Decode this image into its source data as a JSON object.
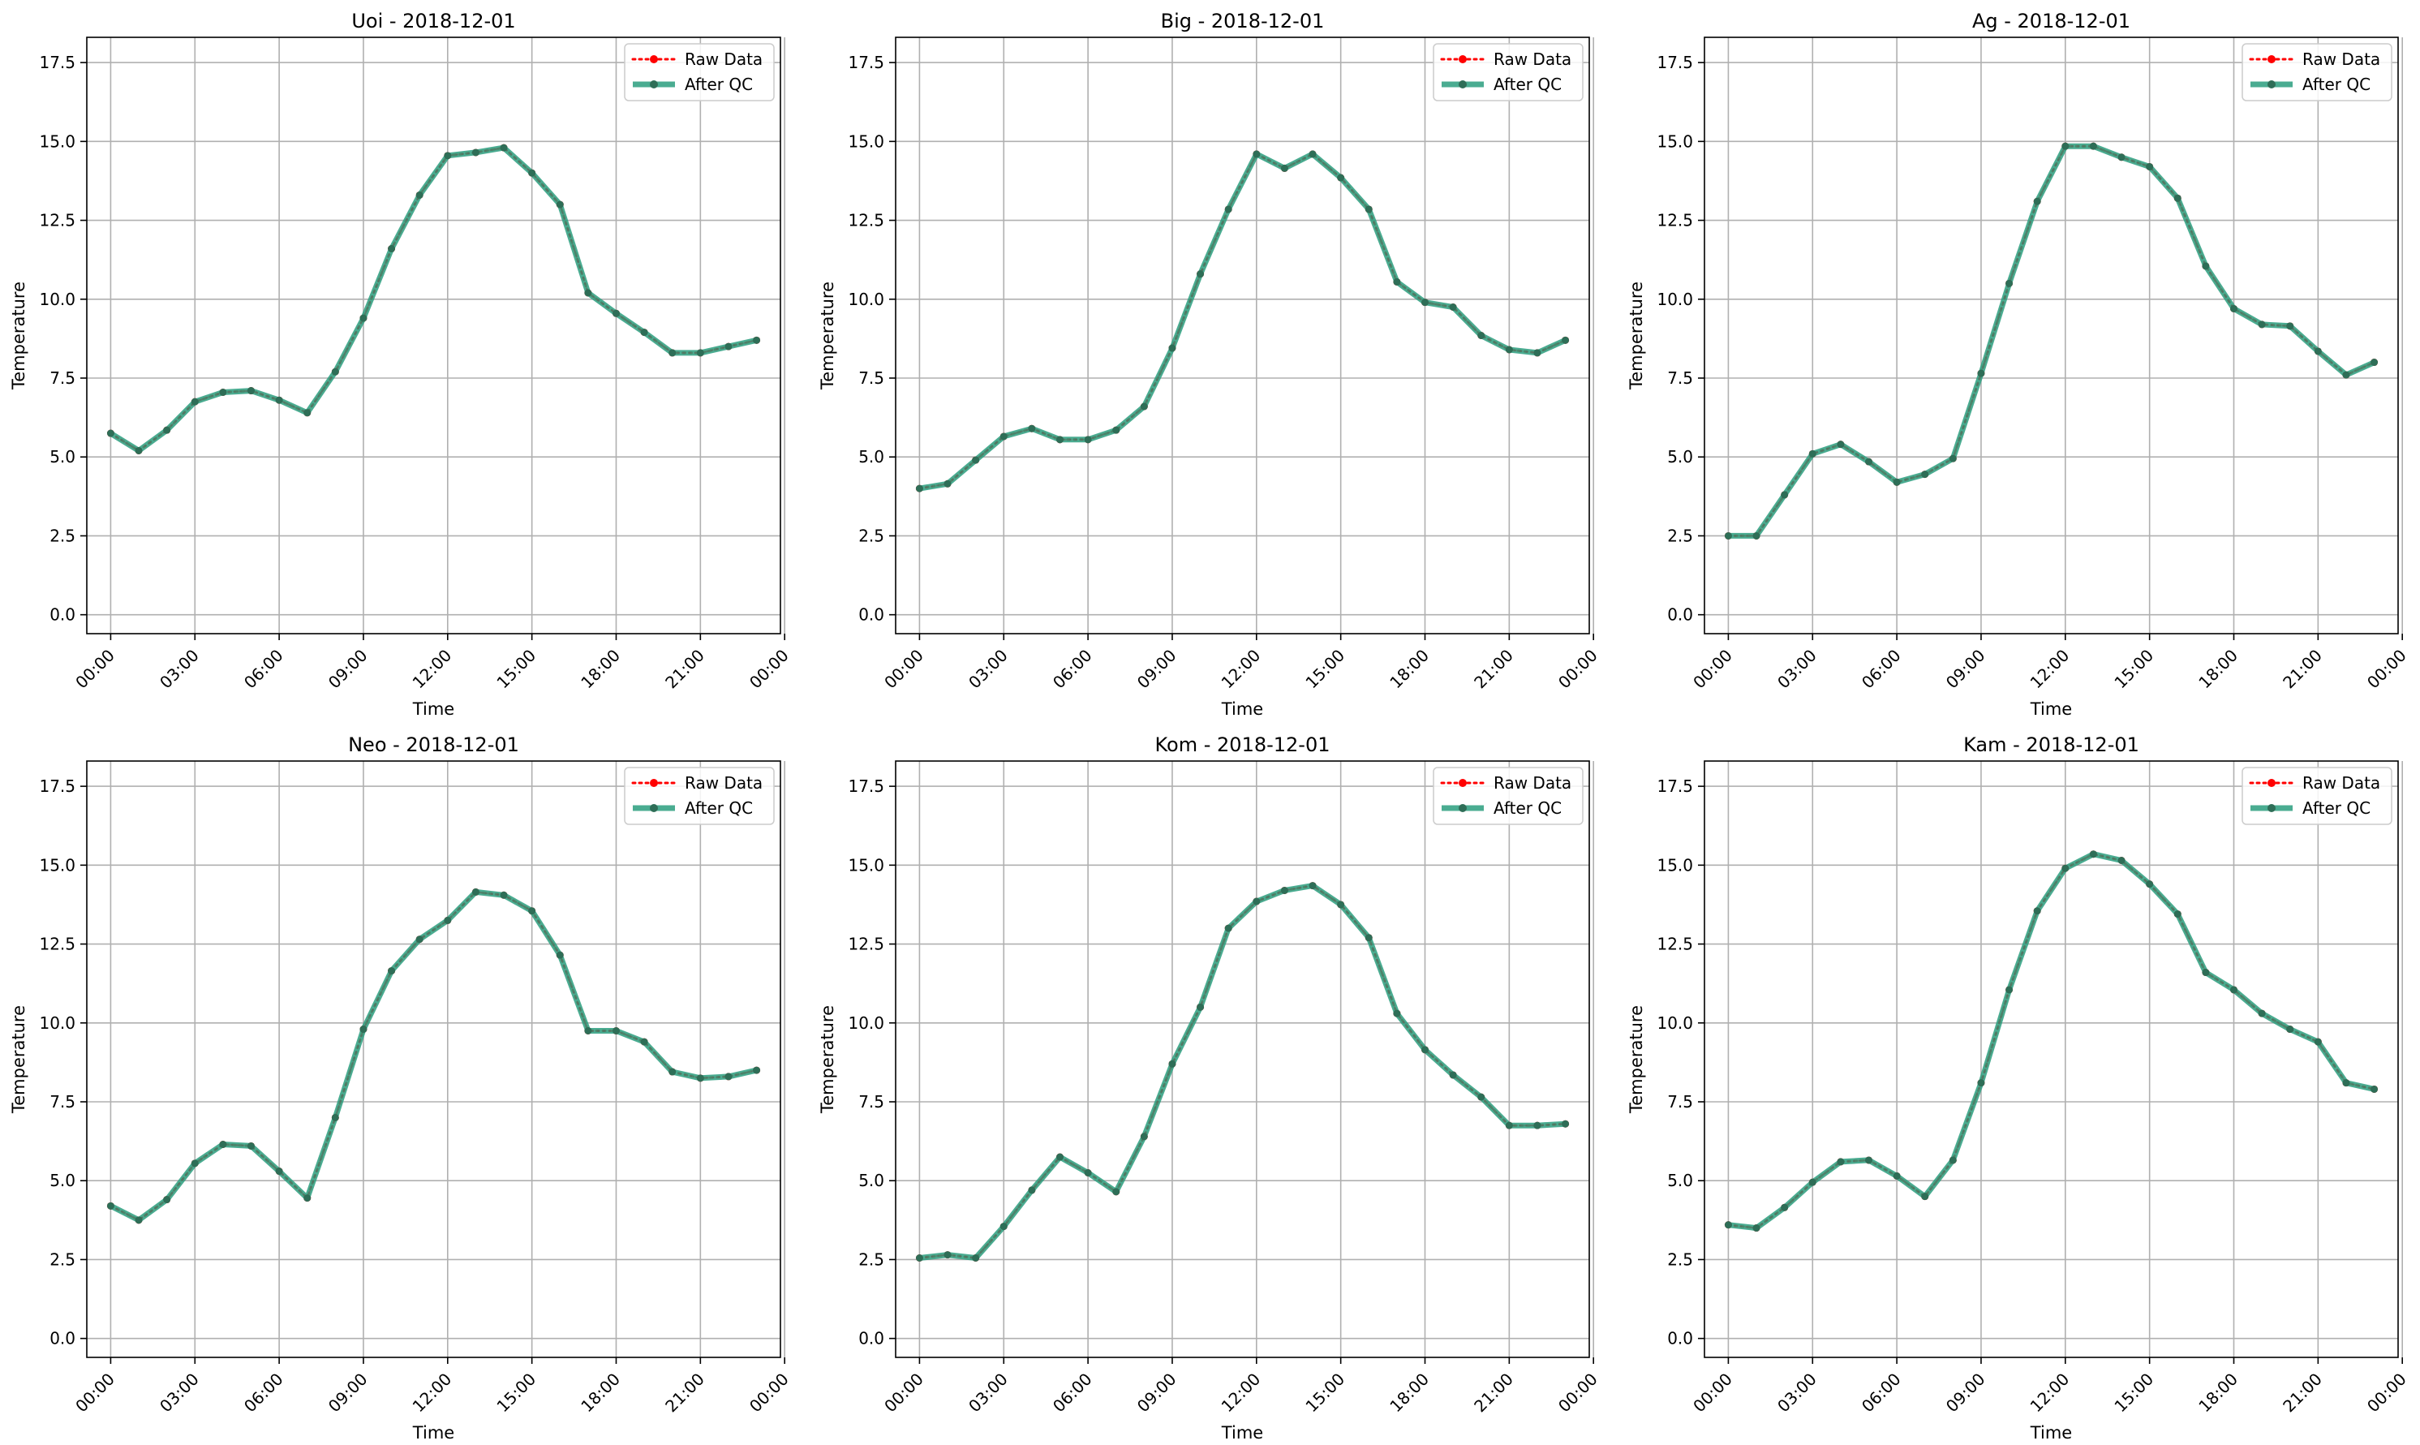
{
  "chart_data": [
    {
      "type": "line",
      "title": "Uoi - 2018-12-01",
      "xlabel": "Time",
      "ylabel": "Temperature",
      "ylim": [
        -0.6,
        18.3
      ],
      "xlim": [
        -0.85,
        23.85
      ],
      "yticks": [
        0.0,
        2.5,
        5.0,
        7.5,
        10.0,
        12.5,
        15.0,
        17.5
      ],
      "ytick_labels": [
        "0.0",
        "2.5",
        "5.0",
        "7.5",
        "10.0",
        "12.5",
        "15.0",
        "17.5"
      ],
      "xticks": [
        0,
        3,
        6,
        9,
        12,
        15,
        18,
        21,
        24
      ],
      "xtick_labels": [
        "00:00",
        "03:00",
        "06:00",
        "09:00",
        "12:00",
        "15:00",
        "18:00",
        "21:00",
        "00:00"
      ],
      "grid": true,
      "legend_position": "top-right",
      "x": [
        "00:00",
        "01:00",
        "02:00",
        "03:00",
        "04:00",
        "05:00",
        "06:00",
        "07:00",
        "08:00",
        "09:00",
        "10:00",
        "11:00",
        "12:00",
        "13:00",
        "14:00",
        "15:00",
        "16:00",
        "17:00",
        "18:00",
        "19:00",
        "20:00",
        "21:00",
        "22:00",
        "23:00"
      ],
      "series": [
        {
          "name": "Raw Data",
          "color": "#ff0000",
          "style": "dotted",
          "values": [
            5.75,
            5.2,
            5.85,
            6.75,
            7.05,
            7.1,
            6.8,
            6.4,
            7.7,
            9.4,
            11.6,
            13.3,
            14.55,
            14.65,
            14.8,
            14.0,
            13.0,
            10.2,
            9.55,
            8.95,
            8.3,
            8.3,
            8.5,
            8.7
          ]
        },
        {
          "name": "After QC",
          "color": "#2a9d7e",
          "style": "solid",
          "values": [
            5.75,
            5.2,
            5.85,
            6.75,
            7.05,
            7.1,
            6.8,
            6.4,
            7.7,
            9.4,
            11.6,
            13.3,
            14.55,
            14.65,
            14.8,
            14.0,
            13.0,
            10.2,
            9.55,
            8.95,
            8.3,
            8.3,
            8.5,
            8.7
          ]
        }
      ]
    },
    {
      "type": "line",
      "title": "Big - 2018-12-01",
      "xlabel": "Time",
      "ylabel": "Temperature",
      "ylim": [
        -0.6,
        18.3
      ],
      "xlim": [
        -0.85,
        23.85
      ],
      "yticks": [
        0.0,
        2.5,
        5.0,
        7.5,
        10.0,
        12.5,
        15.0,
        17.5
      ],
      "ytick_labels": [
        "0.0",
        "2.5",
        "5.0",
        "7.5",
        "10.0",
        "12.5",
        "15.0",
        "17.5"
      ],
      "xticks": [
        0,
        3,
        6,
        9,
        12,
        15,
        18,
        21,
        24
      ],
      "xtick_labels": [
        "00:00",
        "03:00",
        "06:00",
        "09:00",
        "12:00",
        "15:00",
        "18:00",
        "21:00",
        "00:00"
      ],
      "grid": true,
      "legend_position": "top-right",
      "x": [
        "00:00",
        "01:00",
        "02:00",
        "03:00",
        "04:00",
        "05:00",
        "06:00",
        "07:00",
        "08:00",
        "09:00",
        "10:00",
        "11:00",
        "12:00",
        "13:00",
        "14:00",
        "15:00",
        "16:00",
        "17:00",
        "18:00",
        "19:00",
        "20:00",
        "21:00",
        "22:00",
        "23:00"
      ],
      "series": [
        {
          "name": "Raw Data",
          "color": "#ff0000",
          "style": "dotted",
          "values": [
            4.0,
            4.15,
            4.9,
            5.65,
            5.9,
            5.55,
            5.55,
            5.85,
            6.6,
            8.45,
            10.8,
            12.85,
            14.6,
            14.15,
            14.6,
            13.85,
            12.85,
            10.55,
            9.9,
            9.75,
            8.85,
            8.4,
            8.3,
            8.7
          ]
        },
        {
          "name": "After QC",
          "color": "#2a9d7e",
          "style": "solid",
          "values": [
            4.0,
            4.15,
            4.9,
            5.65,
            5.9,
            5.55,
            5.55,
            5.85,
            6.6,
            8.45,
            10.8,
            12.85,
            14.6,
            14.15,
            14.6,
            13.85,
            12.85,
            10.55,
            9.9,
            9.75,
            8.85,
            8.4,
            8.3,
            8.7
          ]
        }
      ]
    },
    {
      "type": "line",
      "title": "Ag - 2018-12-01",
      "xlabel": "Time",
      "ylabel": "Temperature",
      "ylim": [
        -0.6,
        18.3
      ],
      "xlim": [
        -0.85,
        23.85
      ],
      "yticks": [
        0.0,
        2.5,
        5.0,
        7.5,
        10.0,
        12.5,
        15.0,
        17.5
      ],
      "ytick_labels": [
        "0.0",
        "2.5",
        "5.0",
        "7.5",
        "10.0",
        "12.5",
        "15.0",
        "17.5"
      ],
      "xticks": [
        0,
        3,
        6,
        9,
        12,
        15,
        18,
        21,
        24
      ],
      "xtick_labels": [
        "00:00",
        "03:00",
        "06:00",
        "09:00",
        "12:00",
        "15:00",
        "18:00",
        "21:00",
        "00:00"
      ],
      "grid": true,
      "legend_position": "top-right",
      "x": [
        "00:00",
        "01:00",
        "02:00",
        "03:00",
        "04:00",
        "05:00",
        "06:00",
        "07:00",
        "08:00",
        "09:00",
        "10:00",
        "11:00",
        "12:00",
        "13:00",
        "14:00",
        "15:00",
        "16:00",
        "17:00",
        "18:00",
        "19:00",
        "20:00",
        "21:00",
        "22:00",
        "23:00"
      ],
      "series": [
        {
          "name": "Raw Data",
          "color": "#ff0000",
          "style": "dotted",
          "values": [
            2.5,
            2.5,
            3.8,
            5.1,
            5.4,
            4.85,
            4.2,
            4.45,
            4.95,
            7.65,
            10.5,
            13.1,
            14.85,
            14.85,
            14.5,
            14.2,
            13.2,
            11.05,
            9.7,
            9.2,
            9.15,
            8.35,
            7.6,
            8.0
          ]
        },
        {
          "name": "After QC",
          "color": "#2a9d7e",
          "style": "solid",
          "values": [
            2.5,
            2.5,
            3.8,
            5.1,
            5.4,
            4.85,
            4.2,
            4.45,
            4.95,
            7.65,
            10.5,
            13.1,
            14.85,
            14.85,
            14.5,
            14.2,
            13.2,
            11.05,
            9.7,
            9.2,
            9.15,
            8.35,
            7.6,
            8.0
          ]
        }
      ]
    },
    {
      "type": "line",
      "title": "Neo - 2018-12-01",
      "xlabel": "Time",
      "ylabel": "Temperature",
      "ylim": [
        -0.6,
        18.3
      ],
      "xlim": [
        -0.85,
        23.85
      ],
      "yticks": [
        0.0,
        2.5,
        5.0,
        7.5,
        10.0,
        12.5,
        15.0,
        17.5
      ],
      "ytick_labels": [
        "0.0",
        "2.5",
        "5.0",
        "7.5",
        "10.0",
        "12.5",
        "15.0",
        "17.5"
      ],
      "xticks": [
        0,
        3,
        6,
        9,
        12,
        15,
        18,
        21,
        24
      ],
      "xtick_labels": [
        "00:00",
        "03:00",
        "06:00",
        "09:00",
        "12:00",
        "15:00",
        "18:00",
        "21:00",
        "00:00"
      ],
      "grid": true,
      "legend_position": "top-right",
      "x": [
        "00:00",
        "01:00",
        "02:00",
        "03:00",
        "04:00",
        "05:00",
        "06:00",
        "07:00",
        "08:00",
        "09:00",
        "10:00",
        "11:00",
        "12:00",
        "13:00",
        "14:00",
        "15:00",
        "16:00",
        "17:00",
        "18:00",
        "19:00",
        "20:00",
        "21:00",
        "22:00",
        "23:00"
      ],
      "series": [
        {
          "name": "Raw Data",
          "color": "#ff0000",
          "style": "dotted",
          "values": [
            4.2,
            3.75,
            4.4,
            5.55,
            6.15,
            6.1,
            5.3,
            4.45,
            7.0,
            9.8,
            11.65,
            12.65,
            13.25,
            14.15,
            14.05,
            13.55,
            12.15,
            9.75,
            9.75,
            9.4,
            8.45,
            8.25,
            8.3,
            8.5
          ]
        },
        {
          "name": "After QC",
          "color": "#2a9d7e",
          "style": "solid",
          "values": [
            4.2,
            3.75,
            4.4,
            5.55,
            6.15,
            6.1,
            5.3,
            4.45,
            7.0,
            9.8,
            11.65,
            12.65,
            13.25,
            14.15,
            14.05,
            13.55,
            12.15,
            9.75,
            9.75,
            9.4,
            8.45,
            8.25,
            8.3,
            8.5
          ]
        }
      ]
    },
    {
      "type": "line",
      "title": "Kom - 2018-12-01",
      "xlabel": "Time",
      "ylabel": "Temperature",
      "ylim": [
        -0.6,
        18.3
      ],
      "xlim": [
        -0.85,
        23.85
      ],
      "yticks": [
        0.0,
        2.5,
        5.0,
        7.5,
        10.0,
        12.5,
        15.0,
        17.5
      ],
      "ytick_labels": [
        "0.0",
        "2.5",
        "5.0",
        "7.5",
        "10.0",
        "12.5",
        "15.0",
        "17.5"
      ],
      "xticks": [
        0,
        3,
        6,
        9,
        12,
        15,
        18,
        21,
        24
      ],
      "xtick_labels": [
        "00:00",
        "03:00",
        "06:00",
        "09:00",
        "12:00",
        "15:00",
        "18:00",
        "21:00",
        "00:00"
      ],
      "grid": true,
      "legend_position": "top-right",
      "x": [
        "00:00",
        "01:00",
        "02:00",
        "03:00",
        "04:00",
        "05:00",
        "06:00",
        "07:00",
        "08:00",
        "09:00",
        "10:00",
        "11:00",
        "12:00",
        "13:00",
        "14:00",
        "15:00",
        "16:00",
        "17:00",
        "18:00",
        "19:00",
        "20:00",
        "21:00",
        "22:00",
        "23:00"
      ],
      "series": [
        {
          "name": "Raw Data",
          "color": "#ff0000",
          "style": "dotted",
          "values": [
            2.55,
            2.65,
            2.55,
            3.55,
            4.7,
            5.75,
            5.25,
            4.65,
            6.4,
            8.7,
            10.5,
            13.0,
            13.85,
            14.2,
            14.35,
            13.75,
            12.7,
            10.3,
            9.15,
            8.35,
            7.65,
            6.75,
            6.75,
            6.8
          ]
        },
        {
          "name": "After QC",
          "color": "#2a9d7e",
          "style": "solid",
          "values": [
            2.55,
            2.65,
            2.55,
            3.55,
            4.7,
            5.75,
            5.25,
            4.65,
            6.4,
            8.7,
            10.5,
            13.0,
            13.85,
            14.2,
            14.35,
            13.75,
            12.7,
            10.3,
            9.15,
            8.35,
            7.65,
            6.75,
            6.75,
            6.8
          ]
        }
      ]
    },
    {
      "type": "line",
      "title": "Kam - 2018-12-01",
      "xlabel": "Time",
      "ylabel": "Temperature",
      "ylim": [
        -0.6,
        18.3
      ],
      "xlim": [
        -0.85,
        23.85
      ],
      "yticks": [
        0.0,
        2.5,
        5.0,
        7.5,
        10.0,
        12.5,
        15.0,
        17.5
      ],
      "ytick_labels": [
        "0.0",
        "2.5",
        "5.0",
        "7.5",
        "10.0",
        "12.5",
        "15.0",
        "17.5"
      ],
      "xticks": [
        0,
        3,
        6,
        9,
        12,
        15,
        18,
        21,
        24
      ],
      "xtick_labels": [
        "00:00",
        "03:00",
        "06:00",
        "09:00",
        "12:00",
        "15:00",
        "18:00",
        "21:00",
        "00:00"
      ],
      "grid": true,
      "legend_position": "top-right",
      "x": [
        "00:00",
        "01:00",
        "02:00",
        "03:00",
        "04:00",
        "05:00",
        "06:00",
        "07:00",
        "08:00",
        "09:00",
        "10:00",
        "11:00",
        "12:00",
        "13:00",
        "14:00",
        "15:00",
        "16:00",
        "17:00",
        "18:00",
        "19:00",
        "20:00",
        "21:00",
        "22:00",
        "23:00"
      ],
      "series": [
        {
          "name": "Raw Data",
          "color": "#ff0000",
          "style": "dotted",
          "values": [
            3.6,
            3.5,
            4.15,
            4.95,
            5.6,
            5.65,
            5.15,
            4.5,
            5.65,
            8.1,
            11.05,
            13.55,
            14.9,
            15.35,
            15.15,
            14.4,
            13.45,
            11.6,
            11.05,
            10.3,
            9.8,
            9.4,
            8.1,
            7.9
          ]
        },
        {
          "name": "After QC",
          "color": "#2a9d7e",
          "style": "solid",
          "values": [
            3.6,
            3.5,
            4.15,
            4.95,
            5.6,
            5.65,
            5.15,
            4.5,
            5.65,
            8.1,
            11.05,
            13.55,
            14.9,
            15.35,
            15.15,
            14.4,
            13.45,
            11.6,
            11.05,
            10.3,
            9.8,
            9.4,
            8.1,
            7.9
          ]
        }
      ]
    }
  ]
}
